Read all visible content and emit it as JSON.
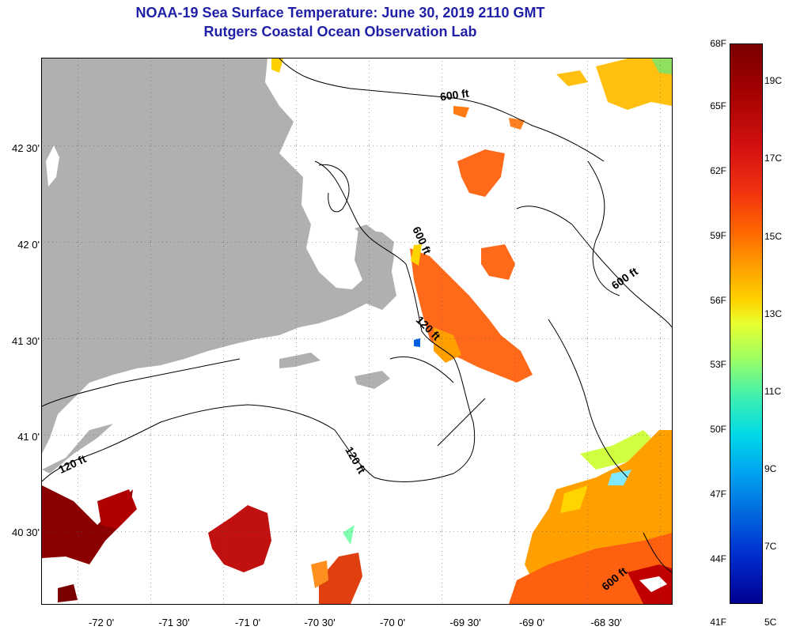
{
  "title_line1": "NOAA-19 Sea Surface Temperature:  June 30, 2019 2110 GMT",
  "title_line2": "Rutgers Coastal Ocean Observation Lab",
  "lat_labels": [
    "42 30'",
    "42 0'",
    "41 30'",
    "41 0'",
    "40 30'"
  ],
  "lon_labels": [
    "-72 0'",
    "-71 30'",
    "-71 0'",
    "-70 30'",
    "-70 0'",
    "-69 30'",
    "-69 0'",
    "-68 30'"
  ],
  "contour_labels": [
    "600 ft",
    "600 ft",
    "600 ft",
    "120 ft",
    "120 ft",
    "120 ft",
    "600 ft"
  ],
  "colorbar": {
    "fahrenheit": [
      "68F",
      "65F",
      "62F",
      "59F",
      "56F",
      "53F",
      "50F",
      "47F",
      "44F",
      "41F"
    ],
    "celsius": [
      "19C",
      "17C",
      "15C",
      "13C",
      "11C",
      "9C",
      "7C",
      "5C"
    ]
  },
  "colors": {
    "land": "#b0b0b0",
    "title": "#1f1fa8",
    "warm": "#ff6a1a",
    "hot": "#8b0000"
  }
}
